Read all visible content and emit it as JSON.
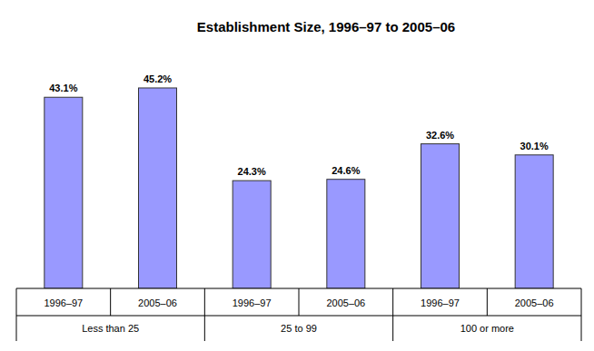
{
  "chart_data": {
    "type": "bar",
    "title": "Establishment Size, 1996–97 to 2005–06",
    "categories": [
      "Less than 25",
      "25 to 99",
      "100 or more"
    ],
    "series": [
      {
        "name": "1996–97",
        "color": "#9999ff",
        "values": [
          43.1,
          24.3,
          32.6
        ],
        "value_labels": [
          "43.1%",
          "24.3%",
          "32.6%"
        ]
      },
      {
        "name": "2005–06",
        "color": "#9999ff",
        "values": [
          45.2,
          24.6,
          30.1
        ],
        "value_labels": [
          "45.2%",
          "24.6%",
          "30.1%"
        ]
      }
    ],
    "ylim": [
      0,
      50
    ],
    "data_labels": true,
    "tick_labels": "x",
    "grid": false
  }
}
